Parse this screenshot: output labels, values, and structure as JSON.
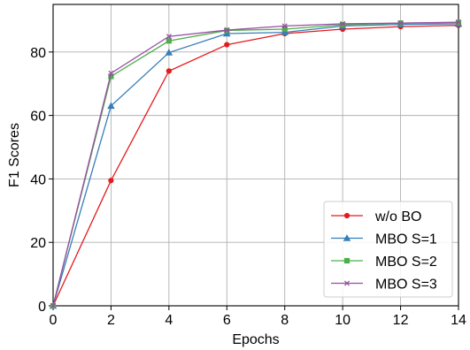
{
  "chart_data": {
    "type": "line",
    "xlabel": "Epochs",
    "ylabel": "F1 Scores",
    "xlim": [
      0,
      14
    ],
    "ylim": [
      0,
      95
    ],
    "xticks": [
      0,
      2,
      4,
      6,
      8,
      10,
      12,
      14
    ],
    "yticks": [
      0,
      20,
      40,
      60,
      80
    ],
    "grid": true,
    "legend_position": "lower-right",
    "x": [
      0,
      2,
      4,
      6,
      8,
      10,
      12,
      14
    ],
    "series": [
      {
        "name": "w/o BO",
        "color": "#e41a1c",
        "marker": "circle",
        "values": [
          0,
          39.5,
          74.0,
          82.3,
          85.8,
          87.2,
          88.0,
          88.4
        ]
      },
      {
        "name": "MBO S=1",
        "color": "#377eb8",
        "marker": "triangle",
        "values": [
          0,
          63.0,
          79.8,
          85.8,
          86.2,
          88.2,
          88.7,
          88.9
        ]
      },
      {
        "name": "MBO S=2",
        "color": "#4daf4a",
        "marker": "square",
        "values": [
          0,
          72.3,
          83.5,
          86.8,
          87.2,
          88.6,
          89.1,
          89.3
        ]
      },
      {
        "name": "MBO S=3",
        "color": "#984ea3",
        "marker": "x",
        "values": [
          0,
          73.3,
          84.9,
          86.9,
          88.2,
          88.9,
          89.1,
          89.4
        ]
      }
    ]
  }
}
